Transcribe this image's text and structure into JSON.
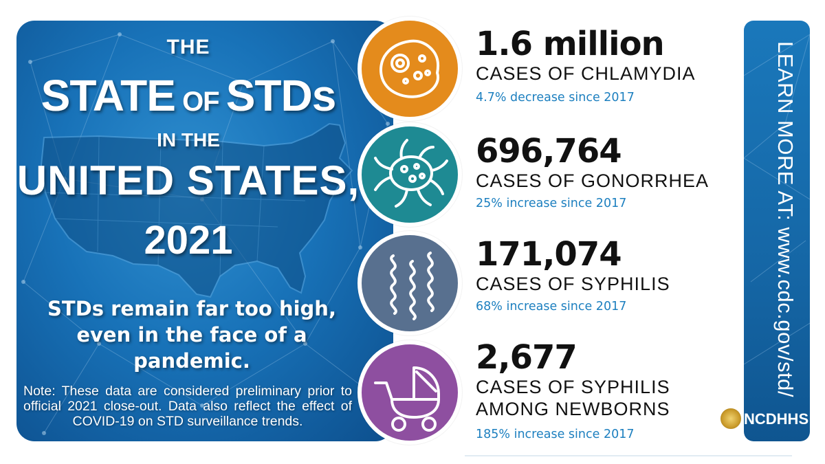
{
  "title": {
    "line1": "THE",
    "line2_a": "STATE",
    "line2_b": " OF ",
    "line2_c": "STDs",
    "line3": "IN THE",
    "line4": "UNITED STATES,",
    "line5": "2021"
  },
  "tagline": [
    "STDs remain far too high,",
    "even in the face of a",
    "pandemic."
  ],
  "note": "Note: These data are considered preliminary prior to official 2021 close-out. Data also reflect the effect of COVID-19 on STD surveillance trends.",
  "stats": [
    {
      "number": "1.6 million",
      "label": "CASES OF CHLAMYDIA",
      "change": "4.7% decrease since 2017",
      "icon": "chlamydia-cell-icon",
      "color": "#e48b1c"
    },
    {
      "number": "696,764",
      "label": "CASES OF GONORRHEA",
      "change": "25% increase since 2017",
      "icon": "gonorrhea-bacterium-icon",
      "color": "#1e8a93"
    },
    {
      "number": "171,074",
      "label": "CASES OF SYPHILIS",
      "change": "68% increase since 2017",
      "icon": "syphilis-spirochete-icon",
      "color": "#58708f"
    },
    {
      "number": "2,677",
      "label_line1": "CASES OF SYPHILIS",
      "label_line2": "AMONG NEWBORNS",
      "change": "185% increase since 2017",
      "icon": "baby-stroller-icon",
      "color": "#8e4fa0"
    }
  ],
  "learn_more": "LEARN MORE AT:  www.cdc.gov/std/",
  "logo": {
    "name": "NCDHHS",
    "icon": "nc-seal-icon"
  }
}
